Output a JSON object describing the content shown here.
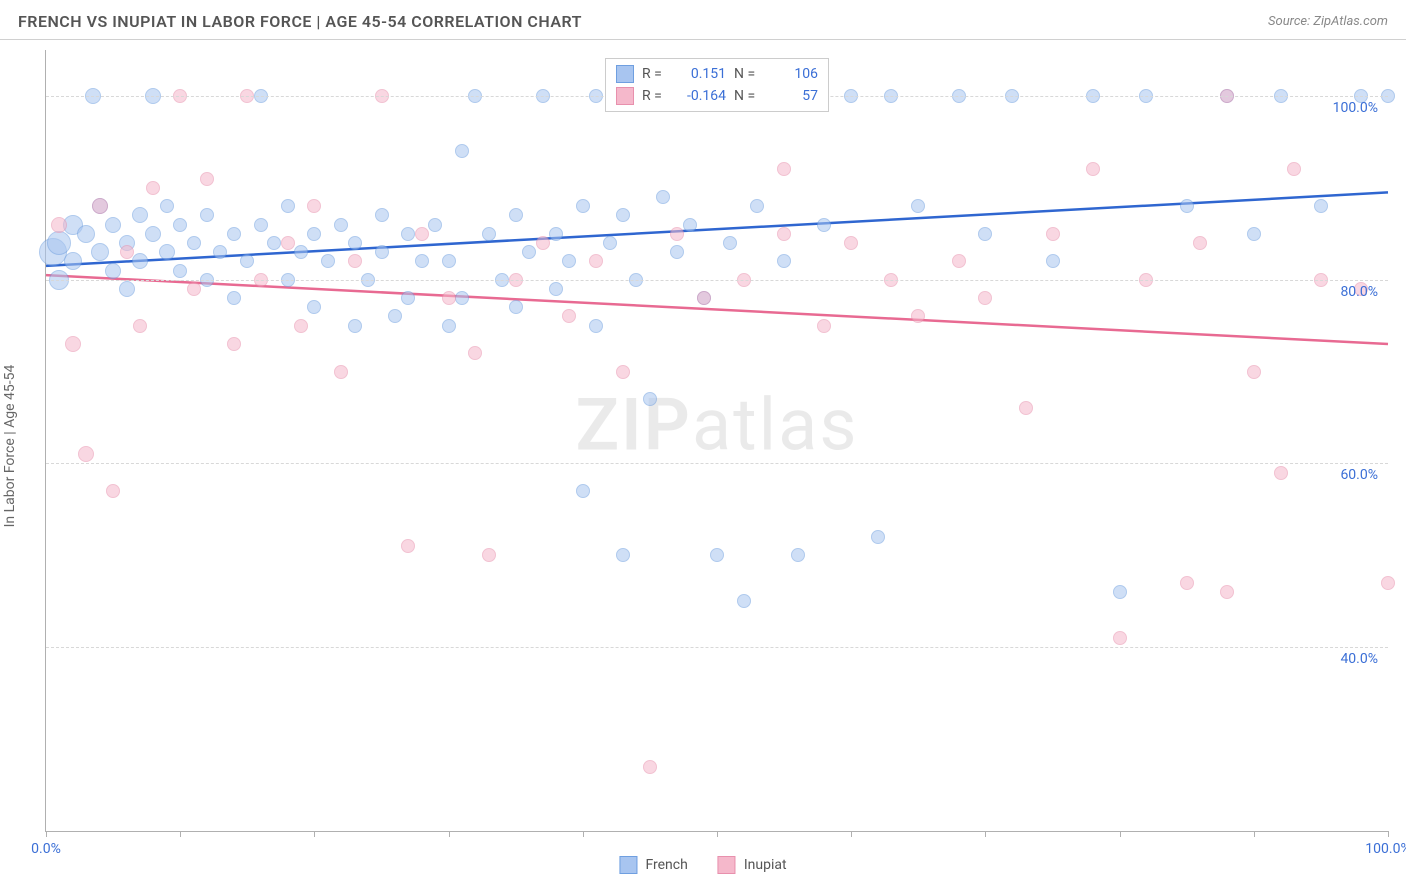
{
  "title": "FRENCH VS INUPIAT IN LABOR FORCE | AGE 45-54 CORRELATION CHART",
  "source": "Source: ZipAtlas.com",
  "ylabel": "In Labor Force | Age 45-54",
  "watermark_a": "ZIP",
  "watermark_b": "atlas",
  "chart": {
    "type": "scatter",
    "xlim": [
      0,
      100
    ],
    "ylim": [
      20,
      105
    ],
    "x_ticks": [
      0,
      10,
      20,
      30,
      40,
      50,
      60,
      70,
      80,
      90,
      100
    ],
    "x_tick_labels": {
      "0": "0.0%",
      "100": "100.0%"
    },
    "y_gridlines": [
      40,
      60,
      80,
      100
    ],
    "y_tick_labels": {
      "40": "40.0%",
      "60": "60.0%",
      "80": "80.0%",
      "100": "100.0%"
    },
    "grid_color": "#d8d8d8",
    "axis_color": "#b0b0b0",
    "tick_label_color": "#3b6fd6",
    "background_color": "#ffffff",
    "marker_base_radius": 8,
    "series": [
      {
        "name": "French",
        "fill": "#a8c5f0",
        "stroke": "#6f9fe0",
        "fill_opacity": 0.55,
        "R": "0.151",
        "N": "106",
        "trend": {
          "x1": 0,
          "y1": 81.5,
          "x2": 100,
          "y2": 89.5,
          "color": "#2f66d0",
          "width": 2.5
        },
        "points": [
          {
            "x": 0.5,
            "y": 83,
            "r": 14
          },
          {
            "x": 1,
            "y": 84,
            "r": 12
          },
          {
            "x": 1,
            "y": 80,
            "r": 10
          },
          {
            "x": 2,
            "y": 86,
            "r": 10
          },
          {
            "x": 2,
            "y": 82,
            "r": 9
          },
          {
            "x": 3,
            "y": 85,
            "r": 9
          },
          {
            "x": 3.5,
            "y": 100,
            "r": 8
          },
          {
            "x": 4,
            "y": 83,
            "r": 9
          },
          {
            "x": 4,
            "y": 88,
            "r": 8
          },
          {
            "x": 5,
            "y": 81,
            "r": 8
          },
          {
            "x": 5,
            "y": 86,
            "r": 8
          },
          {
            "x": 6,
            "y": 84,
            "r": 8
          },
          {
            "x": 6,
            "y": 79,
            "r": 8
          },
          {
            "x": 7,
            "y": 87,
            "r": 8
          },
          {
            "x": 7,
            "y": 82,
            "r": 8
          },
          {
            "x": 8,
            "y": 85,
            "r": 8
          },
          {
            "x": 8,
            "y": 100,
            "r": 8
          },
          {
            "x": 9,
            "y": 83,
            "r": 8
          },
          {
            "x": 9,
            "y": 88,
            "r": 7
          },
          {
            "x": 10,
            "y": 81,
            "r": 7
          },
          {
            "x": 10,
            "y": 86,
            "r": 7
          },
          {
            "x": 11,
            "y": 84,
            "r": 7
          },
          {
            "x": 12,
            "y": 80,
            "r": 7
          },
          {
            "x": 12,
            "y": 87,
            "r": 7
          },
          {
            "x": 13,
            "y": 83,
            "r": 7
          },
          {
            "x": 14,
            "y": 85,
            "r": 7
          },
          {
            "x": 14,
            "y": 78,
            "r": 7
          },
          {
            "x": 15,
            "y": 82,
            "r": 7
          },
          {
            "x": 16,
            "y": 86,
            "r": 7
          },
          {
            "x": 16,
            "y": 100,
            "r": 7
          },
          {
            "x": 17,
            "y": 84,
            "r": 7
          },
          {
            "x": 18,
            "y": 80,
            "r": 7
          },
          {
            "x": 18,
            "y": 88,
            "r": 7
          },
          {
            "x": 19,
            "y": 83,
            "r": 7
          },
          {
            "x": 20,
            "y": 85,
            "r": 7
          },
          {
            "x": 20,
            "y": 77,
            "r": 7
          },
          {
            "x": 21,
            "y": 82,
            "r": 7
          },
          {
            "x": 22,
            "y": 86,
            "r": 7
          },
          {
            "x": 23,
            "y": 84,
            "r": 7
          },
          {
            "x": 23,
            "y": 75,
            "r": 7
          },
          {
            "x": 24,
            "y": 80,
            "r": 7
          },
          {
            "x": 25,
            "y": 83,
            "r": 7
          },
          {
            "x": 25,
            "y": 87,
            "r": 7
          },
          {
            "x": 26,
            "y": 76,
            "r": 7
          },
          {
            "x": 27,
            "y": 85,
            "r": 7
          },
          {
            "x": 27,
            "y": 78,
            "r": 7
          },
          {
            "x": 28,
            "y": 82,
            "r": 7
          },
          {
            "x": 29,
            "y": 86,
            "r": 7
          },
          {
            "x": 30,
            "y": 75,
            "r": 7
          },
          {
            "x": 30,
            "y": 82,
            "r": 7
          },
          {
            "x": 31,
            "y": 94,
            "r": 7
          },
          {
            "x": 31,
            "y": 78,
            "r": 7
          },
          {
            "x": 32,
            "y": 100,
            "r": 7
          },
          {
            "x": 33,
            "y": 85,
            "r": 7
          },
          {
            "x": 34,
            "y": 80,
            "r": 7
          },
          {
            "x": 35,
            "y": 77,
            "r": 7
          },
          {
            "x": 35,
            "y": 87,
            "r": 7
          },
          {
            "x": 36,
            "y": 83,
            "r": 7
          },
          {
            "x": 37,
            "y": 100,
            "r": 7
          },
          {
            "x": 38,
            "y": 79,
            "r": 7
          },
          {
            "x": 38,
            "y": 85,
            "r": 7
          },
          {
            "x": 39,
            "y": 82,
            "r": 7
          },
          {
            "x": 40,
            "y": 88,
            "r": 7
          },
          {
            "x": 40,
            "y": 57,
            "r": 7
          },
          {
            "x": 41,
            "y": 100,
            "r": 7
          },
          {
            "x": 41,
            "y": 75,
            "r": 7
          },
          {
            "x": 42,
            "y": 84,
            "r": 7
          },
          {
            "x": 43,
            "y": 50,
            "r": 7
          },
          {
            "x": 43,
            "y": 87,
            "r": 7
          },
          {
            "x": 44,
            "y": 80,
            "r": 7
          },
          {
            "x": 45,
            "y": 100,
            "r": 7
          },
          {
            "x": 45,
            "y": 67,
            "r": 7
          },
          {
            "x": 46,
            "y": 89,
            "r": 7
          },
          {
            "x": 47,
            "y": 83,
            "r": 7
          },
          {
            "x": 48,
            "y": 86,
            "r": 7
          },
          {
            "x": 49,
            "y": 78,
            "r": 7
          },
          {
            "x": 50,
            "y": 100,
            "r": 7
          },
          {
            "x": 50,
            "y": 50,
            "r": 7
          },
          {
            "x": 51,
            "y": 84,
            "r": 7
          },
          {
            "x": 52,
            "y": 45,
            "r": 7
          },
          {
            "x": 53,
            "y": 88,
            "r": 7
          },
          {
            "x": 54,
            "y": 100,
            "r": 7
          },
          {
            "x": 55,
            "y": 82,
            "r": 7
          },
          {
            "x": 56,
            "y": 50,
            "r": 7
          },
          {
            "x": 57,
            "y": 100,
            "r": 7
          },
          {
            "x": 58,
            "y": 86,
            "r": 7
          },
          {
            "x": 60,
            "y": 100,
            "r": 7
          },
          {
            "x": 62,
            "y": 52,
            "r": 7
          },
          {
            "x": 63,
            "y": 100,
            "r": 7
          },
          {
            "x": 65,
            "y": 88,
            "r": 7
          },
          {
            "x": 68,
            "y": 100,
            "r": 7
          },
          {
            "x": 70,
            "y": 85,
            "r": 7
          },
          {
            "x": 72,
            "y": 100,
            "r": 7
          },
          {
            "x": 75,
            "y": 82,
            "r": 7
          },
          {
            "x": 78,
            "y": 100,
            "r": 7
          },
          {
            "x": 80,
            "y": 46,
            "r": 7
          },
          {
            "x": 82,
            "y": 100,
            "r": 7
          },
          {
            "x": 85,
            "y": 88,
            "r": 7
          },
          {
            "x": 88,
            "y": 100,
            "r": 7
          },
          {
            "x": 90,
            "y": 85,
            "r": 7
          },
          {
            "x": 92,
            "y": 100,
            "r": 7
          },
          {
            "x": 95,
            "y": 88,
            "r": 7
          },
          {
            "x": 98,
            "y": 100,
            "r": 7
          },
          {
            "x": 100,
            "y": 100,
            "r": 7
          },
          {
            "x": 48,
            "y": 100,
            "r": 7
          },
          {
            "x": 53,
            "y": 100,
            "r": 7
          }
        ]
      },
      {
        "name": "Inupiat",
        "fill": "#f5b8cb",
        "stroke": "#e890ad",
        "fill_opacity": 0.55,
        "R": "-0.164",
        "N": "57",
        "trend": {
          "x1": 0,
          "y1": 80.5,
          "x2": 100,
          "y2": 73.0,
          "color": "#e86a92",
          "width": 2.5
        },
        "points": [
          {
            "x": 1,
            "y": 86,
            "r": 8
          },
          {
            "x": 2,
            "y": 73,
            "r": 8
          },
          {
            "x": 3,
            "y": 61,
            "r": 8
          },
          {
            "x": 4,
            "y": 88,
            "r": 8
          },
          {
            "x": 5,
            "y": 57,
            "r": 7
          },
          {
            "x": 6,
            "y": 83,
            "r": 7
          },
          {
            "x": 7,
            "y": 75,
            "r": 7
          },
          {
            "x": 8,
            "y": 90,
            "r": 7
          },
          {
            "x": 10,
            "y": 100,
            "r": 7
          },
          {
            "x": 11,
            "y": 79,
            "r": 7
          },
          {
            "x": 12,
            "y": 91,
            "r": 7
          },
          {
            "x": 14,
            "y": 73,
            "r": 7
          },
          {
            "x": 15,
            "y": 100,
            "r": 7
          },
          {
            "x": 16,
            "y": 80,
            "r": 7
          },
          {
            "x": 18,
            "y": 84,
            "r": 7
          },
          {
            "x": 19,
            "y": 75,
            "r": 7
          },
          {
            "x": 20,
            "y": 88,
            "r": 7
          },
          {
            "x": 22,
            "y": 70,
            "r": 7
          },
          {
            "x": 23,
            "y": 82,
            "r": 7
          },
          {
            "x": 25,
            "y": 100,
            "r": 7
          },
          {
            "x": 27,
            "y": 51,
            "r": 7
          },
          {
            "x": 28,
            "y": 85,
            "r": 7
          },
          {
            "x": 30,
            "y": 78,
            "r": 7
          },
          {
            "x": 32,
            "y": 72,
            "r": 7
          },
          {
            "x": 33,
            "y": 50,
            "r": 7
          },
          {
            "x": 35,
            "y": 80,
            "r": 7
          },
          {
            "x": 37,
            "y": 84,
            "r": 7
          },
          {
            "x": 39,
            "y": 76,
            "r": 7
          },
          {
            "x": 41,
            "y": 82,
            "r": 7
          },
          {
            "x": 43,
            "y": 70,
            "r": 7
          },
          {
            "x": 45,
            "y": 27,
            "r": 7
          },
          {
            "x": 47,
            "y": 85,
            "r": 7
          },
          {
            "x": 49,
            "y": 78,
            "r": 7
          },
          {
            "x": 52,
            "y": 80,
            "r": 7
          },
          {
            "x": 55,
            "y": 92,
            "r": 7
          },
          {
            "x": 55,
            "y": 85,
            "r": 7
          },
          {
            "x": 58,
            "y": 75,
            "r": 7
          },
          {
            "x": 60,
            "y": 84,
            "r": 7
          },
          {
            "x": 63,
            "y": 80,
            "r": 7
          },
          {
            "x": 65,
            "y": 76,
            "r": 7
          },
          {
            "x": 68,
            "y": 82,
            "r": 7
          },
          {
            "x": 70,
            "y": 78,
            "r": 7
          },
          {
            "x": 73,
            "y": 66,
            "r": 7
          },
          {
            "x": 75,
            "y": 85,
            "r": 7
          },
          {
            "x": 78,
            "y": 92,
            "r": 7
          },
          {
            "x": 80,
            "y": 41,
            "r": 7
          },
          {
            "x": 82,
            "y": 80,
            "r": 7
          },
          {
            "x": 85,
            "y": 47,
            "r": 7
          },
          {
            "x": 86,
            "y": 84,
            "r": 7
          },
          {
            "x": 88,
            "y": 100,
            "r": 7
          },
          {
            "x": 88,
            "y": 46,
            "r": 7
          },
          {
            "x": 90,
            "y": 70,
            "r": 7
          },
          {
            "x": 92,
            "y": 59,
            "r": 7
          },
          {
            "x": 93,
            "y": 92,
            "r": 7
          },
          {
            "x": 95,
            "y": 80,
            "r": 7
          },
          {
            "x": 98,
            "y": 79,
            "r": 7
          },
          {
            "x": 100,
            "y": 47,
            "r": 7
          }
        ]
      }
    ]
  },
  "legend_top": {
    "r_label": "R =",
    "n_label": "N ="
  },
  "legend_bottom": [
    {
      "label": "French",
      "fill": "#a8c5f0",
      "stroke": "#6f9fe0"
    },
    {
      "label": "Inupiat",
      "fill": "#f5b8cb",
      "stroke": "#e890ad"
    }
  ]
}
